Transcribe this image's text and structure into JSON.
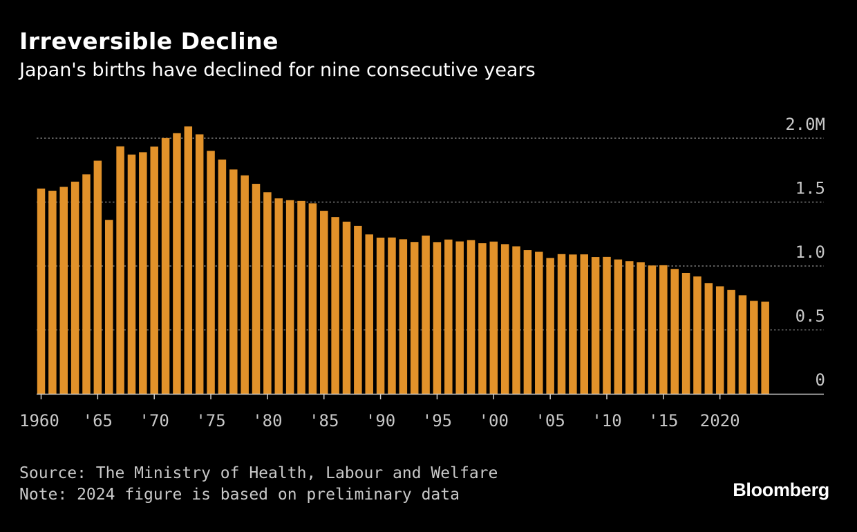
{
  "header": {
    "title": "Irreversible Decline",
    "subtitle": "Japan's births have declined for nine consecutive years"
  },
  "footer": {
    "source": "Source: The Ministry of Health, Labour and Welfare",
    "note": "Note: 2024 figure is based on preliminary data",
    "brand": "Bloomberg"
  },
  "colors": {
    "background": "#000000",
    "bar": "#E2922A",
    "grid": "#7a7a7a",
    "axis": "#d0d0d0",
    "text": "#ffffff",
    "muted": "#c8c8c8"
  },
  "chart_data": {
    "type": "bar",
    "title": "Irreversible Decline",
    "subtitle": "Japan's births have declined for nine consecutive years",
    "xlabel": "",
    "ylabel": "",
    "unit": "million births",
    "ylim": [
      0,
      2.0
    ],
    "y_ticks": [
      {
        "value": 0,
        "label": "0"
      },
      {
        "value": 0.5,
        "label": "0.5"
      },
      {
        "value": 1.0,
        "label": "1.0"
      },
      {
        "value": 1.5,
        "label": "1.5"
      },
      {
        "value": 2.0,
        "label": "2.0M"
      }
    ],
    "x_ticks": [
      {
        "year": 1960,
        "label": "1960"
      },
      {
        "year": 1965,
        "label": "'65"
      },
      {
        "year": 1970,
        "label": "'70"
      },
      {
        "year": 1975,
        "label": "'75"
      },
      {
        "year": 1980,
        "label": "'80"
      },
      {
        "year": 1985,
        "label": "'85"
      },
      {
        "year": 1990,
        "label": "'90"
      },
      {
        "year": 1995,
        "label": "'95"
      },
      {
        "year": 2000,
        "label": "'00"
      },
      {
        "year": 2005,
        "label": "'05"
      },
      {
        "year": 2010,
        "label": "'10"
      },
      {
        "year": 2015,
        "label": "'15"
      },
      {
        "year": 2020,
        "label": "2020"
      }
    ],
    "grid": true,
    "legend": "none",
    "categories": [
      1960,
      1961,
      1962,
      1963,
      1964,
      1965,
      1966,
      1967,
      1968,
      1969,
      1970,
      1971,
      1972,
      1973,
      1974,
      1975,
      1976,
      1977,
      1978,
      1979,
      1980,
      1981,
      1982,
      1983,
      1984,
      1985,
      1986,
      1987,
      1988,
      1989,
      1990,
      1991,
      1992,
      1993,
      1994,
      1995,
      1996,
      1997,
      1998,
      1999,
      2000,
      2001,
      2002,
      2003,
      2004,
      2005,
      2006,
      2007,
      2008,
      2009,
      2010,
      2011,
      2012,
      2013,
      2014,
      2015,
      2016,
      2017,
      2018,
      2019,
      2020,
      2021,
      2022,
      2023,
      2024
    ],
    "values": [
      1.606,
      1.589,
      1.619,
      1.66,
      1.717,
      1.824,
      1.361,
      1.936,
      1.872,
      1.89,
      1.934,
      2.001,
      2.039,
      2.092,
      2.03,
      1.901,
      1.833,
      1.755,
      1.709,
      1.643,
      1.577,
      1.529,
      1.515,
      1.509,
      1.49,
      1.432,
      1.383,
      1.347,
      1.314,
      1.247,
      1.222,
      1.223,
      1.209,
      1.188,
      1.238,
      1.187,
      1.207,
      1.192,
      1.203,
      1.178,
      1.191,
      1.171,
      1.154,
      1.124,
      1.111,
      1.063,
      1.093,
      1.09,
      1.091,
      1.07,
      1.071,
      1.051,
      1.037,
      1.03,
      1.004,
      1.006,
      0.977,
      0.946,
      0.918,
      0.865,
      0.841,
      0.812,
      0.771,
      0.727,
      0.721
    ]
  }
}
